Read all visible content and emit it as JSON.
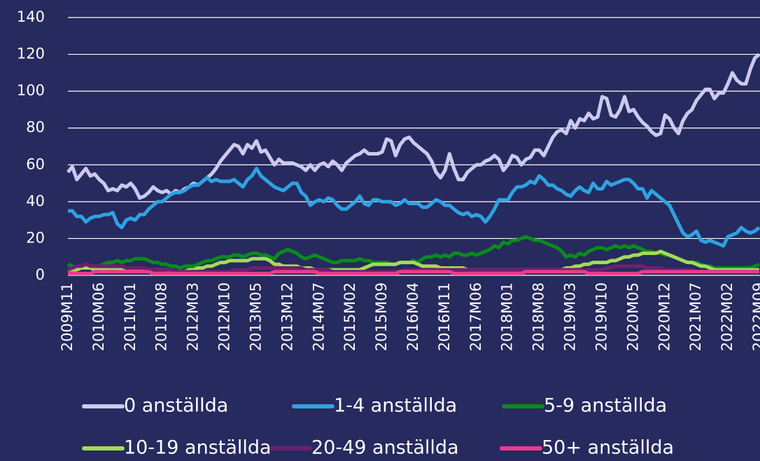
{
  "chart_data": {
    "type": "line",
    "categories": [
      "2009M11",
      null,
      null,
      null,
      null,
      null,
      null,
      "2010M06",
      null,
      null,
      null,
      null,
      null,
      null,
      "2011M01",
      null,
      null,
      null,
      null,
      null,
      null,
      "2011M08",
      null,
      null,
      null,
      null,
      null,
      null,
      "2012M03",
      null,
      null,
      null,
      null,
      null,
      null,
      "2012M10",
      null,
      null,
      null,
      null,
      null,
      null,
      "2013M05",
      null,
      null,
      null,
      null,
      null,
      null,
      "2013M12",
      null,
      null,
      null,
      null,
      null,
      null,
      "2014M07",
      null,
      null,
      null,
      null,
      null,
      null,
      "2015M02",
      null,
      null,
      null,
      null,
      null,
      null,
      "2015M09",
      null,
      null,
      null,
      null,
      null,
      null,
      "2016M04",
      null,
      null,
      null,
      null,
      null,
      null,
      "2016M11",
      null,
      null,
      null,
      null,
      null,
      null,
      "2017M06",
      null,
      null,
      null,
      null,
      null,
      null,
      "2018M01",
      null,
      null,
      null,
      null,
      null,
      null,
      "2018M08",
      null,
      null,
      null,
      null,
      null,
      null,
      "2019M03",
      null,
      null,
      null,
      null,
      null,
      null,
      "2019M10",
      null,
      null,
      null,
      null,
      null,
      null,
      "2020M05",
      null,
      null,
      null,
      null,
      null,
      null,
      "2020M12",
      null,
      null,
      null,
      null,
      null,
      null,
      "2021M07",
      null,
      null,
      null,
      null,
      null,
      null,
      "2022M02",
      null,
      null,
      null,
      null,
      null,
      null,
      "2022M09"
    ],
    "ylim": [
      0,
      140
    ],
    "yticks": [
      0,
      20,
      40,
      60,
      80,
      100,
      120,
      140
    ],
    "grid": true,
    "series": [
      {
        "name": "0 anställda",
        "color": "#cbc9ef",
        "values": [
          56,
          59,
          52,
          55,
          58,
          54,
          55,
          52,
          50,
          46,
          47,
          46,
          49,
          48,
          50,
          47,
          42,
          43,
          45,
          48,
          46,
          45,
          46,
          44,
          46,
          45,
          47,
          48,
          50,
          49,
          51,
          53,
          55,
          58,
          62,
          65,
          68,
          71,
          70,
          66,
          71,
          69,
          73,
          67,
          68,
          64,
          60,
          63,
          61,
          61,
          61,
          60,
          59,
          57,
          60,
          57,
          60,
          61,
          59,
          62,
          60,
          57,
          61,
          63,
          65,
          66,
          68,
          66,
          66,
          66,
          67,
          74,
          73,
          65,
          71,
          74,
          75,
          72,
          70,
          68,
          66,
          62,
          56,
          53,
          57,
          66,
          58,
          52,
          52,
          56,
          58,
          60,
          60,
          62,
          63,
          65,
          63,
          57,
          60,
          65,
          64,
          60,
          63,
          64,
          68,
          68,
          65,
          70,
          75,
          78,
          79,
          77,
          84,
          80,
          85,
          84,
          88,
          85,
          86,
          97,
          96,
          87,
          86,
          90,
          97,
          89,
          90,
          86,
          83,
          81,
          78,
          76,
          77,
          87,
          85,
          80,
          77,
          84,
          88,
          90,
          95,
          98,
          101,
          101,
          96,
          99,
          99,
          104,
          110,
          106,
          104,
          104,
          112,
          118,
          120
        ]
      },
      {
        "name": "1-4 anställda",
        "color": "#2ea2e2",
        "values": [
          35,
          35,
          32,
          32,
          29,
          31,
          32,
          32,
          33,
          33,
          34,
          28,
          26,
          30,
          31,
          30,
          33,
          33,
          36,
          38,
          40,
          40,
          42,
          44,
          45,
          45,
          46,
          48,
          49,
          49,
          51,
          53,
          51,
          52,
          51,
          51,
          51,
          52,
          50,
          48,
          52,
          54,
          58,
          54,
          52,
          50,
          48,
          47,
          46,
          48,
          50,
          50,
          45,
          43,
          38,
          40,
          41,
          40,
          42,
          41,
          38,
          36,
          36,
          38,
          40,
          43,
          39,
          38,
          41,
          41,
          40,
          40,
          40,
          38,
          39,
          41,
          39,
          39,
          39,
          37,
          37,
          39,
          41,
          40,
          38,
          38,
          36,
          34,
          33,
          34,
          32,
          33,
          32,
          29,
          32,
          36,
          41,
          41,
          41,
          45,
          48,
          48,
          49,
          51,
          50,
          54,
          52,
          49,
          49,
          47,
          46,
          44,
          43,
          46,
          48,
          46,
          45,
          50,
          47,
          47,
          51,
          49,
          50,
          51,
          52,
          52,
          50,
          47,
          47,
          42,
          46,
          44,
          42,
          40,
          38,
          33,
          28,
          23,
          21,
          22,
          24,
          19,
          18,
          19,
          18,
          17,
          16,
          21,
          22,
          23,
          26,
          24,
          23,
          24,
          26
        ]
      },
      {
        "name": "5-9 anställda",
        "color": "#0b8a1c",
        "values": [
          6,
          5,
          4,
          5,
          6,
          5,
          5,
          5,
          6,
          7,
          7,
          8,
          7,
          8,
          8,
          9,
          9,
          9,
          8,
          7,
          7,
          6,
          6,
          5,
          5,
          4,
          5,
          5,
          5,
          6,
          7,
          8,
          8,
          9,
          10,
          10,
          10,
          11,
          11,
          10,
          11,
          12,
          12,
          11,
          11,
          10,
          9,
          12,
          13,
          14,
          13,
          12,
          10,
          9,
          10,
          11,
          10,
          9,
          8,
          7,
          7,
          8,
          8,
          8,
          8,
          9,
          8,
          8,
          7,
          7,
          7,
          7,
          6,
          6,
          7,
          7,
          7,
          8,
          7,
          9,
          10,
          10,
          11,
          10,
          11,
          10,
          12,
          12,
          11,
          11,
          12,
          11,
          12,
          13,
          14,
          16,
          15,
          18,
          17,
          19,
          19,
          20,
          21,
          20,
          19,
          19,
          18,
          17,
          16,
          15,
          13,
          10,
          11,
          10,
          12,
          11,
          13,
          14,
          15,
          15,
          14,
          15,
          16,
          15,
          16,
          15,
          16,
          15,
          14,
          13,
          13,
          12,
          12,
          11,
          11,
          10,
          9,
          8,
          7,
          7,
          7,
          6,
          5,
          5,
          4,
          4,
          4,
          4,
          4,
          4,
          4,
          4,
          4,
          5,
          6
        ]
      },
      {
        "name": "10-19 anställda",
        "color": "#a6d95b",
        "values": [
          3,
          3,
          3,
          4,
          4,
          4,
          3,
          3,
          3,
          3,
          3,
          3,
          3,
          3,
          3,
          3,
          3,
          3,
          3,
          3,
          3,
          3,
          3,
          2,
          2,
          2,
          2,
          3,
          3,
          4,
          4,
          5,
          5,
          6,
          7,
          7,
          8,
          8,
          8,
          8,
          8,
          9,
          9,
          9,
          9,
          8,
          6,
          6,
          5,
          5,
          5,
          5,
          4,
          4,
          4,
          3,
          3,
          3,
          3,
          3,
          3,
          3,
          3,
          3,
          3,
          3,
          4,
          5,
          6,
          6,
          6,
          6,
          6,
          6,
          7,
          7,
          7,
          7,
          6,
          5,
          5,
          5,
          5,
          4,
          4,
          4,
          4,
          4,
          4,
          3,
          3,
          3,
          3,
          3,
          3,
          3,
          3,
          3,
          3,
          3,
          3,
          3,
          3,
          3,
          3,
          3,
          3,
          3,
          3,
          3,
          3,
          4,
          4,
          5,
          5,
          6,
          6,
          7,
          7,
          7,
          7,
          8,
          8,
          9,
          10,
          10,
          11,
          11,
          12,
          12,
          12,
          12,
          13,
          12,
          11,
          10,
          9,
          8,
          7,
          7,
          6,
          5,
          5,
          4,
          3,
          3,
          3,
          3,
          3,
          3,
          3,
          3,
          3,
          3,
          3
        ]
      },
      {
        "name": "20-49 anställda",
        "color": "#701f70",
        "values": [
          3,
          4,
          5,
          5,
          6,
          5,
          5,
          5,
          5,
          5,
          5,
          5,
          5,
          4,
          4,
          4,
          4,
          4,
          3,
          3,
          3,
          3,
          3,
          3,
          2,
          2,
          2,
          2,
          2,
          2,
          2,
          2,
          2,
          2,
          2,
          2,
          2,
          3,
          3,
          3,
          3,
          4,
          4,
          4,
          4,
          4,
          4,
          4,
          4,
          4,
          4,
          4,
          4,
          3,
          3,
          3,
          3,
          3,
          3,
          2,
          2,
          2,
          2,
          2,
          2,
          2,
          2,
          2,
          2,
          2,
          2,
          2,
          2,
          2,
          2,
          3,
          3,
          3,
          3,
          3,
          3,
          3,
          3,
          3,
          3,
          3,
          3,
          3,
          3,
          3,
          3,
          3,
          3,
          3,
          3,
          3,
          3,
          3,
          3,
          3,
          3,
          3,
          3,
          3,
          3,
          3,
          3,
          3,
          3,
          3,
          3,
          3,
          3,
          3,
          3,
          3,
          3,
          3,
          3,
          3,
          4,
          4,
          5,
          5,
          5,
          5,
          5,
          5,
          5,
          4,
          4,
          4,
          4,
          3,
          3,
          3,
          3,
          3,
          3,
          3,
          2,
          2,
          2,
          2,
          2,
          2,
          2,
          2,
          2,
          2,
          2,
          2,
          2,
          2,
          2
        ]
      },
      {
        "name": "50+ anställda",
        "color": "#eb3b8d",
        "values": [
          1,
          1,
          1,
          1,
          1,
          1,
          2,
          2,
          2,
          2,
          2,
          2,
          2,
          2,
          2,
          2,
          2,
          2,
          2,
          1,
          1,
          1,
          1,
          1,
          1,
          1,
          1,
          1,
          1,
          1,
          1,
          1,
          1,
          1,
          1,
          1,
          1,
          1,
          1,
          1,
          1,
          1,
          1,
          1,
          1,
          1,
          2,
          2,
          2,
          2,
          2,
          2,
          2,
          2,
          2,
          2,
          1,
          1,
          1,
          1,
          1,
          1,
          1,
          1,
          1,
          1,
          1,
          1,
          1,
          1,
          1,
          1,
          1,
          1,
          2,
          2,
          2,
          2,
          2,
          2,
          2,
          2,
          2,
          2,
          2,
          2,
          1,
          1,
          1,
          1,
          1,
          1,
          1,
          1,
          1,
          1,
          1,
          1,
          1,
          1,
          1,
          1,
          2,
          2,
          2,
          2,
          2,
          2,
          2,
          2,
          2,
          2,
          2,
          2,
          2,
          2,
          1,
          1,
          1,
          1,
          1,
          1,
          1,
          1,
          1,
          1,
          1,
          1,
          2,
          2,
          2,
          2,
          2,
          2,
          2,
          2,
          2,
          2,
          2,
          2,
          2,
          2,
          2,
          2,
          2,
          2,
          2,
          2,
          2,
          2,
          2,
          2,
          2,
          2,
          2
        ]
      }
    ]
  }
}
